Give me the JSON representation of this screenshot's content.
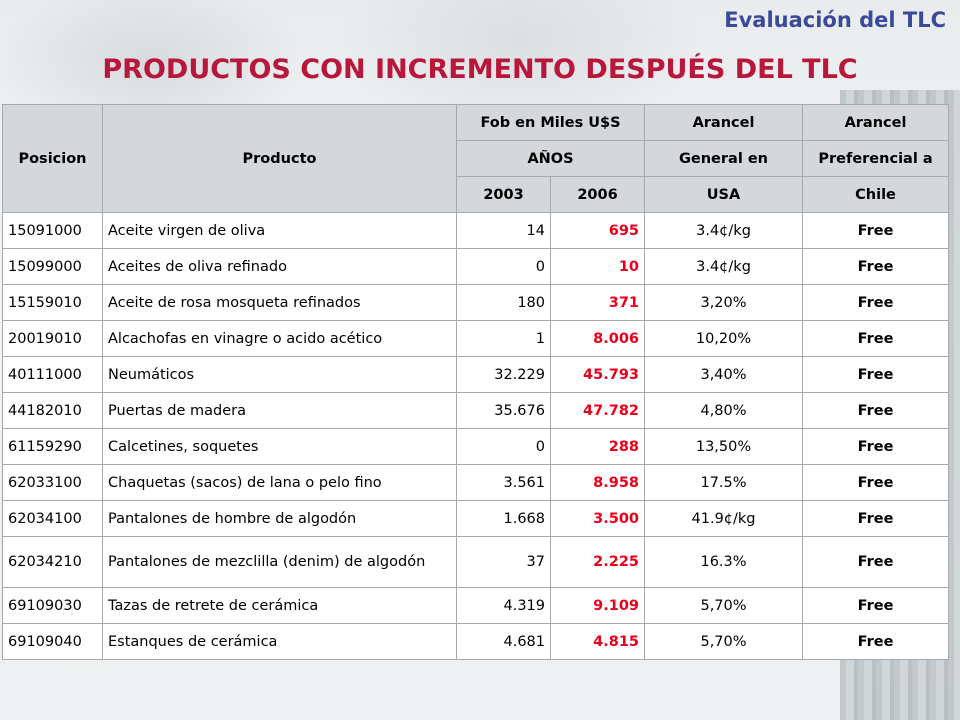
{
  "header": {
    "section": "Evaluación del TLC"
  },
  "page_title": "PRODUCTOS CON INCREMENTO DESPUÉS DEL TLC",
  "table": {
    "headers": {
      "posicion": "Posicion",
      "producto": "Producto",
      "fob_top": "Fob en Miles U$S",
      "fob_mid": "AÑOS",
      "year_a": "2003",
      "year_b": "2006",
      "arancel_usa_1": "Arancel",
      "arancel_usa_2": "General en",
      "arancel_usa_3": "USA",
      "arancel_pref_1": "Arancel",
      "arancel_pref_2": "Preferencial a",
      "arancel_pref_3": "Chile"
    },
    "rows": [
      {
        "posicion": "15091000",
        "producto": "Aceite virgen de oliva",
        "y2003": "14",
        "y2006": "695",
        "arancel_usa": "3.4¢/kg",
        "arancel_chile": "Free"
      },
      {
        "posicion": "15099000",
        "producto": "Aceites de oliva refinado",
        "y2003": "0",
        "y2006": "10",
        "arancel_usa": "3.4¢/kg",
        "arancel_chile": "Free"
      },
      {
        "posicion": "15159010",
        "producto": "Aceite de rosa mosqueta refinados",
        "y2003": "180",
        "y2006": "371",
        "arancel_usa": "3,20%",
        "arancel_chile": "Free"
      },
      {
        "posicion": "20019010",
        "producto": "Alcachofas en vinagre o acido acético",
        "y2003": "1",
        "y2006": "8.006",
        "arancel_usa": "10,20%",
        "arancel_chile": "Free"
      },
      {
        "posicion": "40111000",
        "producto": "Neumáticos",
        "y2003": "32.229",
        "y2006": "45.793",
        "arancel_usa": "3,40%",
        "arancel_chile": "Free"
      },
      {
        "posicion": "44182010",
        "producto": "Puertas de madera",
        "y2003": "35.676",
        "y2006": "47.782",
        "arancel_usa": "4,80%",
        "arancel_chile": "Free"
      },
      {
        "posicion": "61159290",
        "producto": "Calcetines, soquetes",
        "y2003": "0",
        "y2006": "288",
        "arancel_usa": "13,50%",
        "arancel_chile": "Free"
      },
      {
        "posicion": "62033100",
        "producto": "Chaquetas (sacos) de lana o pelo fino",
        "y2003": "3.561",
        "y2006": "8.958",
        "arancel_usa": "17.5%",
        "arancel_chile": "Free"
      },
      {
        "posicion": "62034100",
        "producto": "Pantalones de hombre de algodón",
        "y2003": "1.668",
        "y2006": "3.500",
        "arancel_usa": "41.9¢/kg",
        "arancel_chile": "Free"
      },
      {
        "posicion": "62034210",
        "producto": "Pantalones de mezclilla (denim) de algodón",
        "y2003": "37",
        "y2006": "2.225",
        "arancel_usa": "16.3%",
        "arancel_chile": "Free"
      },
      {
        "posicion": "69109030",
        "producto": "Tazas de retrete de cerámica",
        "y2003": "4.319",
        "y2006": "9.109",
        "arancel_usa": "5,70%",
        "arancel_chile": "Free"
      },
      {
        "posicion": "69109040",
        "producto": "Estanques de cerámica",
        "y2003": "4.681",
        "y2006": "4.815",
        "arancel_usa": "5,70%",
        "arancel_chile": "Free"
      }
    ]
  },
  "colors": {
    "section_title": "#3a4a9a",
    "page_title": "#b8163a",
    "highlight_value": "#e8001c",
    "header_bg": "#d4d8db"
  }
}
